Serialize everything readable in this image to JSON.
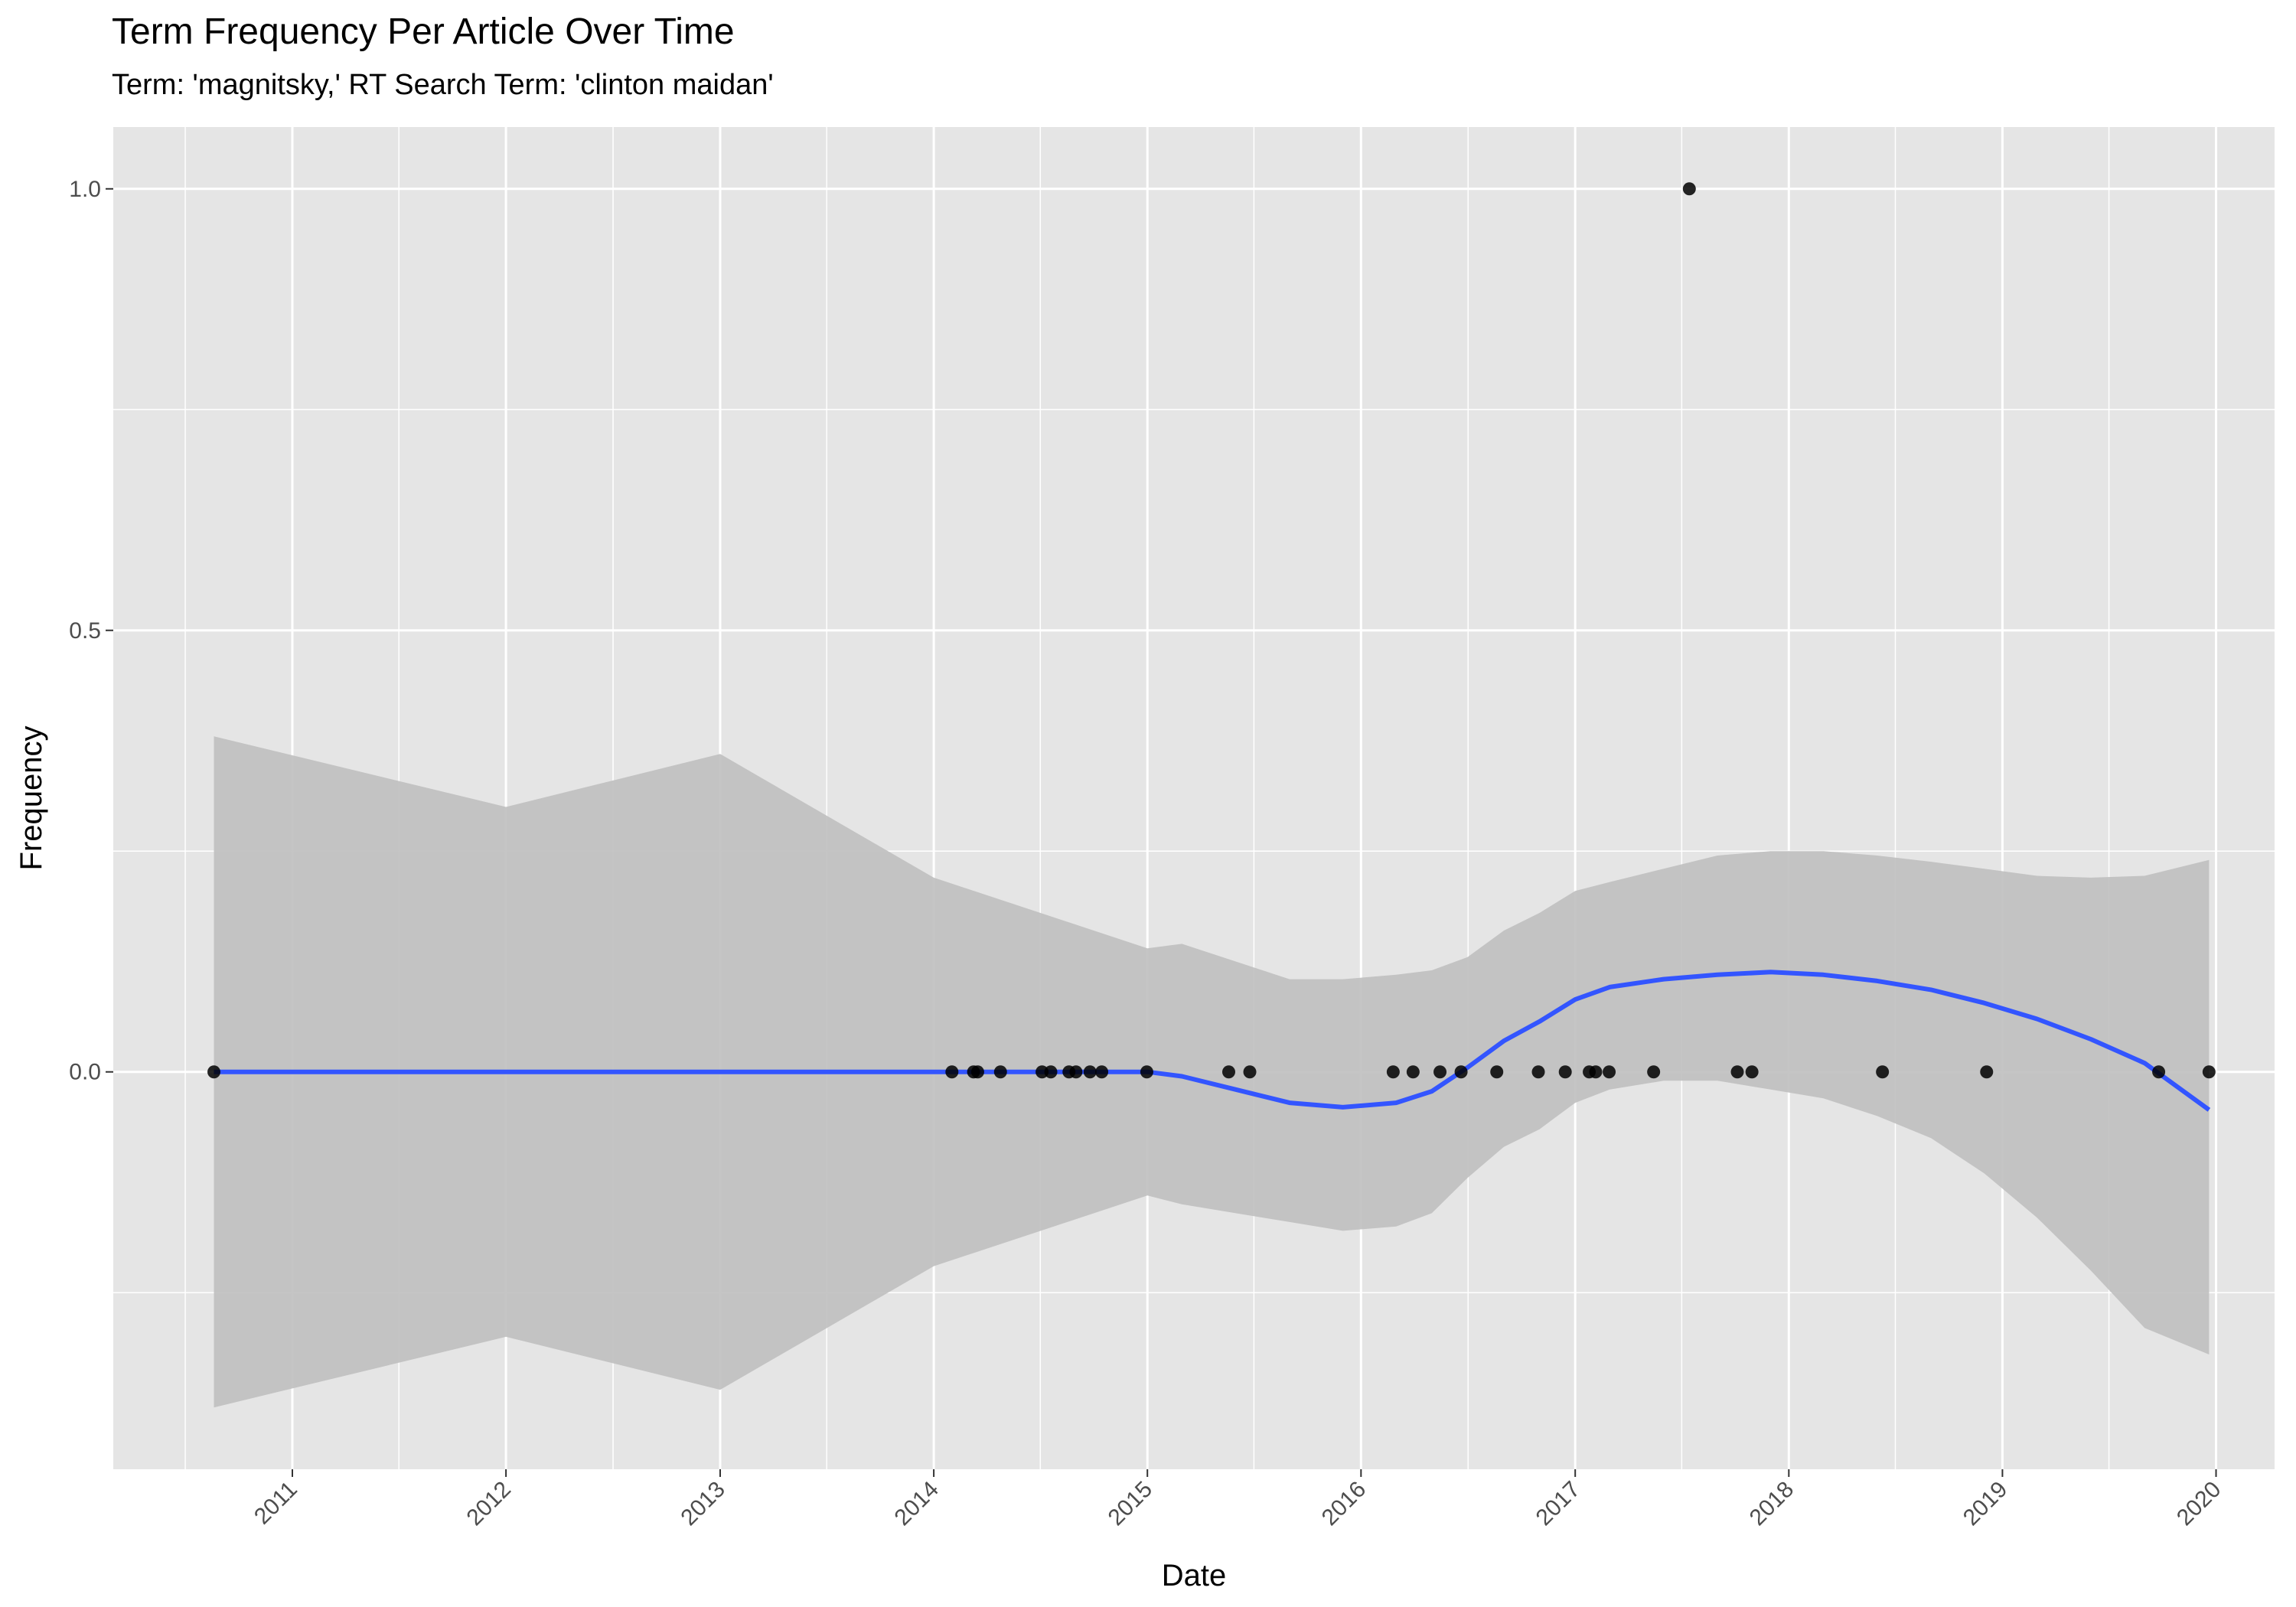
{
  "chart_data": {
    "type": "scatter",
    "title": "Term Frequency Per Article Over Time",
    "subtitle": "Term: 'magnitsky,' RT Search Term: 'clinton maidan'",
    "xlabel": "Date",
    "ylabel": "Frequency",
    "x_tick_labels": [
      "2011",
      "2012",
      "2013",
      "2014",
      "2015",
      "2016",
      "2017",
      "2018",
      "2019",
      "2020"
    ],
    "y_tick_labels": [
      "0.0",
      "0.5",
      "1.0"
    ],
    "xlim": [
      "2010-03-01",
      "2020-04-10"
    ],
    "ylim": [
      -0.45,
      1.07
    ],
    "grid": true,
    "colors": {
      "panel": "#e5e5e5",
      "grid": "#ffffff",
      "points": "#000000",
      "smooth_line": "#3355ff",
      "confidence_band": "#bfbfbf"
    },
    "points": [
      {
        "x": "2010-08-20",
        "y": 0
      },
      {
        "x": "2014-02-01",
        "y": 0
      },
      {
        "x": "2014-03-10",
        "y": 0
      },
      {
        "x": "2014-03-17",
        "y": 0
      },
      {
        "x": "2014-04-25",
        "y": 0
      },
      {
        "x": "2014-07-05",
        "y": 0
      },
      {
        "x": "2014-07-20",
        "y": 0
      },
      {
        "x": "2014-08-20",
        "y": 0
      },
      {
        "x": "2014-09-01",
        "y": 0
      },
      {
        "x": "2014-09-25",
        "y": 0
      },
      {
        "x": "2014-10-15",
        "y": 0
      },
      {
        "x": "2014-12-31",
        "y": 0
      },
      {
        "x": "2015-05-20",
        "y": 0
      },
      {
        "x": "2015-06-25",
        "y": 0
      },
      {
        "x": "2016-02-25",
        "y": 0
      },
      {
        "x": "2016-03-30",
        "y": 0
      },
      {
        "x": "2016-05-15",
        "y": 0
      },
      {
        "x": "2016-06-20",
        "y": 0
      },
      {
        "x": "2016-08-20",
        "y": 0
      },
      {
        "x": "2016-10-30",
        "y": 0
      },
      {
        "x": "2016-12-15",
        "y": 0
      },
      {
        "x": "2017-01-25",
        "y": 0
      },
      {
        "x": "2017-02-05",
        "y": 0
      },
      {
        "x": "2017-02-28",
        "y": 0
      },
      {
        "x": "2017-05-15",
        "y": 0
      },
      {
        "x": "2017-07-15",
        "y": 1.0
      },
      {
        "x": "2017-10-05",
        "y": 0
      },
      {
        "x": "2017-10-30",
        "y": 0
      },
      {
        "x": "2018-06-10",
        "y": 0
      },
      {
        "x": "2018-12-05",
        "y": 0
      },
      {
        "x": "2019-09-25",
        "y": 0
      },
      {
        "x": "2019-12-20",
        "y": 0
      }
    ],
    "smooth": {
      "x": [
        "2010-08-20",
        "2012-01-01",
        "2013-01-01",
        "2014-01-01",
        "2015-01-01",
        "2015-03-01",
        "2015-06-01",
        "2015-09-01",
        "2015-12-01",
        "2016-03-01",
        "2016-05-01",
        "2016-07-01",
        "2016-09-01",
        "2016-11-01",
        "2017-01-01",
        "2017-03-01",
        "2017-06-01",
        "2017-09-01",
        "2017-12-01",
        "2018-03-01",
        "2018-06-01",
        "2018-09-01",
        "2018-12-01",
        "2019-03-01",
        "2019-06-01",
        "2019-09-01",
        "2019-12-20"
      ],
      "y": [
        0,
        0,
        0,
        0,
        0,
        -0.005,
        -0.02,
        -0.035,
        -0.04,
        -0.035,
        -0.022,
        0.005,
        0.035,
        0.057,
        0.082,
        0.096,
        0.105,
        0.11,
        0.113,
        0.11,
        0.103,
        0.093,
        0.078,
        0.06,
        0.037,
        0.01,
        -0.043
      ],
      "upper": [
        0.38,
        0.3,
        0.36,
        0.22,
        0.14,
        0.145,
        0.125,
        0.105,
        0.105,
        0.11,
        0.115,
        0.13,
        0.16,
        0.18,
        0.205,
        0.215,
        0.23,
        0.245,
        0.25,
        0.25,
        0.245,
        0.238,
        0.23,
        0.222,
        0.22,
        0.222,
        0.24
      ],
      "lower": [
        -0.38,
        -0.3,
        -0.36,
        -0.22,
        -0.14,
        -0.15,
        -0.16,
        -0.17,
        -0.18,
        -0.175,
        -0.16,
        -0.12,
        -0.085,
        -0.065,
        -0.035,
        -0.02,
        -0.01,
        -0.01,
        -0.02,
        -0.03,
        -0.05,
        -0.075,
        -0.115,
        -0.165,
        -0.225,
        -0.29,
        -0.32
      ]
    }
  }
}
